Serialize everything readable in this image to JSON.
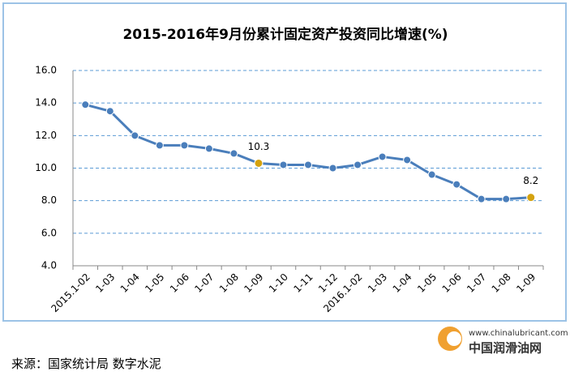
{
  "chart_data": {
    "type": "line",
    "title": "2015-2016年9月份累计固定资产投资同比增速(%)",
    "categories": [
      "2015.1-02",
      "1-03",
      "1-04",
      "1-05",
      "1-06",
      "1-07",
      "1-08",
      "1-09",
      "1-10",
      "1-11",
      "1-12",
      "2016.1-02",
      "1-03",
      "1-04",
      "1-05",
      "1-06",
      "1-07",
      "1-08",
      "1-09"
    ],
    "series": [
      {
        "name": "累计固定资产投资同比增速",
        "color": "#4a7ebb",
        "values": [
          13.9,
          13.5,
          12.0,
          11.4,
          11.4,
          11.2,
          10.9,
          10.3,
          10.2,
          10.2,
          10.0,
          10.2,
          10.7,
          10.5,
          9.6,
          9.0,
          8.1,
          8.1,
          8.2
        ],
        "value_labels": [
          null,
          null,
          null,
          null,
          null,
          null,
          null,
          "10.3",
          null,
          null,
          null,
          null,
          null,
          null,
          null,
          null,
          null,
          null,
          "8.2"
        ],
        "highlight_color": "#d4a20f"
      }
    ],
    "ylim": [
      4,
      16
    ],
    "yticks": [
      {
        "value": 4,
        "label": "4.0"
      },
      {
        "value": 6,
        "label": "6.0"
      },
      {
        "value": 8,
        "label": "8.0"
      },
      {
        "value": 10,
        "label": "10.0"
      },
      {
        "value": 12,
        "label": "12.0"
      },
      {
        "value": 14,
        "label": "14.0"
      },
      {
        "value": 16,
        "label": "16.0"
      }
    ],
    "grid": true,
    "source": "来源：国家统计局  数字水泥",
    "logo_url": "www.chinalubricant.com",
    "logo_name": "中国润滑油网"
  }
}
